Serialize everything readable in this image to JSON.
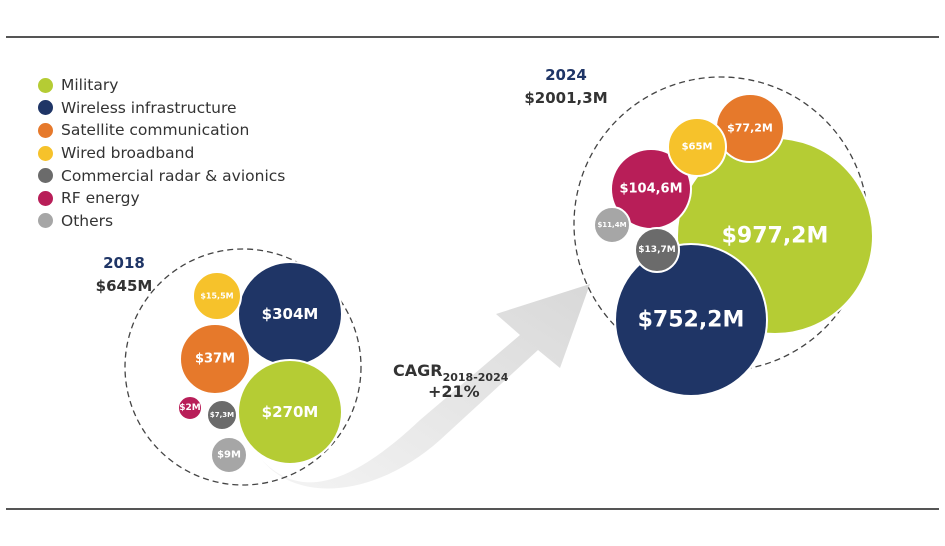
{
  "chart_data": {
    "type": "bubble",
    "legend_placement": "top-left",
    "series": [
      {
        "key": "military",
        "name": "Military",
        "color": "#b5cc34"
      },
      {
        "key": "wireless",
        "name": "Wireless infrastructure",
        "color": "#1f3566"
      },
      {
        "key": "satellite",
        "name": "Satellite communication",
        "color": "#e6792b"
      },
      {
        "key": "wired",
        "name": "Wired broadband",
        "color": "#f6c22b"
      },
      {
        "key": "radar",
        "name": "Commercial radar & avionics",
        "color": "#6b6b6b"
      },
      {
        "key": "rf",
        "name": "RF energy",
        "color": "#b81e58"
      },
      {
        "key": "others",
        "name": "Others",
        "color": "#a6a6a6"
      }
    ],
    "groups": [
      {
        "year": "2018",
        "total_label": "$645M",
        "bubbles": [
          {
            "series": "wireless",
            "value": 304,
            "label": "$304M"
          },
          {
            "series": "military",
            "value": 270,
            "label": "$270M"
          },
          {
            "series": "satellite",
            "value": 37,
            "label": "$37M"
          },
          {
            "series": "wired",
            "value": 15.5,
            "label": "$15,5M"
          },
          {
            "series": "others",
            "value": 9,
            "label": "$9M"
          },
          {
            "series": "radar",
            "value": 7.3,
            "label": "$7,3M"
          },
          {
            "series": "rf",
            "value": 2,
            "label": "$2M"
          }
        ]
      },
      {
        "year": "2024",
        "total_label": "$2001,3M",
        "bubbles": [
          {
            "series": "military",
            "value": 977.2,
            "label": "$977,2M"
          },
          {
            "series": "wireless",
            "value": 752.2,
            "label": "$752,2M"
          },
          {
            "series": "rf",
            "value": 104.6,
            "label": "$104,6M"
          },
          {
            "series": "satellite",
            "value": 77.2,
            "label": "$77,2M"
          },
          {
            "series": "wired",
            "value": 65,
            "label": "$65M"
          },
          {
            "series": "radar",
            "value": 13.7,
            "label": "$13,7M"
          },
          {
            "series": "others",
            "value": 11.4,
            "label": "$11,4M"
          }
        ]
      }
    ],
    "cagr": {
      "label": "CAGR",
      "period": "2018-2024",
      "value": "+21%"
    }
  }
}
